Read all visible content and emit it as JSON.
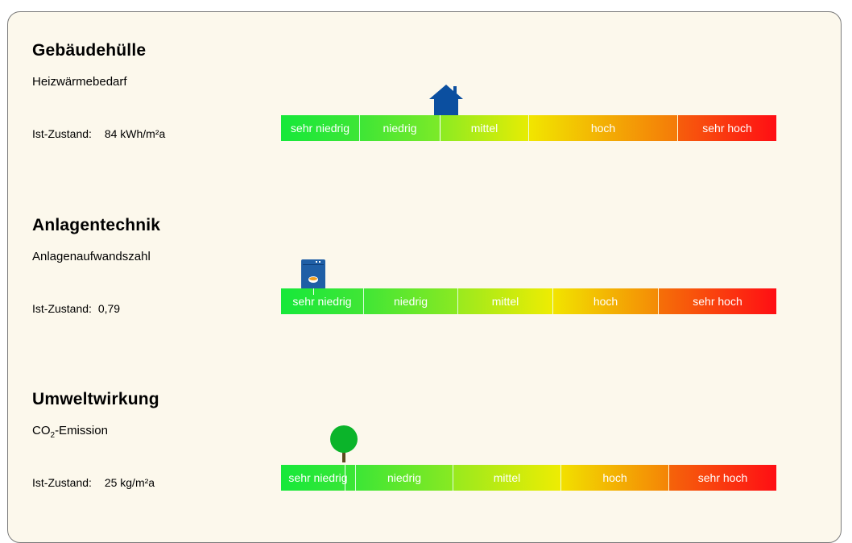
{
  "sections": [
    {
      "title": "Gebäudehülle",
      "subtitle": "Heizwärmebedarf",
      "status_label": "Ist-Zustand:",
      "status_value": "84 kWh/m²a",
      "icon": "house-icon",
      "scale": [
        "sehr niedrig",
        "niedrig",
        "mittel",
        "hoch",
        "sehr hoch"
      ],
      "indicator_fraction": 0.32
    },
    {
      "title": "Anlagentechnik",
      "subtitle": "Anlagenaufwandszahl",
      "status_label": "Ist-Zustand:",
      "status_value": "0,79",
      "icon": "boiler-icon",
      "scale": [
        "sehr niedrig",
        "niedrig",
        "mittel",
        "hoch",
        "sehr hoch"
      ],
      "indicator_fraction": 0.065
    },
    {
      "title": "Umweltwirkung",
      "subtitle_main": "CO",
      "subtitle_sub": "2",
      "subtitle_rest": "-Emission",
      "status_label": "Ist-Zustand:",
      "status_value": "25 kg/m²a",
      "icon": "tree-icon",
      "scale": [
        "sehr niedrig",
        "niedrig",
        "mittel",
        "hoch",
        "sehr hoch"
      ],
      "indicator_fraction": 0.13
    }
  ],
  "colors": {
    "panel_bg": "#fcf8ec",
    "scale_start": "#16e83a",
    "scale_mid": "#f0ec00",
    "scale_end": "#ff0e14",
    "house": "#0b4fa0",
    "boiler": "#1f5fa6",
    "tree_crown": "#0bb42a",
    "tree_trunk": "#5a4a1e"
  }
}
